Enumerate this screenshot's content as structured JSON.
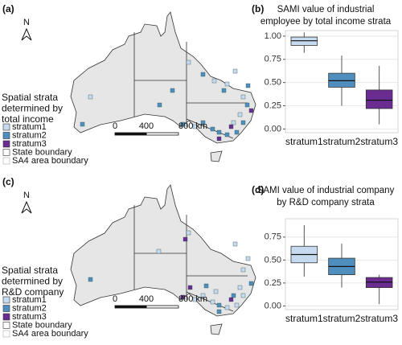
{
  "chart_data": [
    {
      "type": "box",
      "panel": "(b)",
      "title": [
        "SAMI value of industrial",
        "employee by total income strata"
      ],
      "categories": [
        "stratum1",
        "stratum2",
        "stratum3"
      ],
      "boxes": [
        {
          "min": 0.82,
          "q1": 0.9,
          "median": 0.95,
          "q3": 0.99,
          "max": 1.04,
          "color": "#c6dbef"
        },
        {
          "min": 0.25,
          "q1": 0.45,
          "median": 0.52,
          "q3": 0.6,
          "max": 0.79,
          "color": "#4f8fc0"
        },
        {
          "min": 0.05,
          "q1": 0.22,
          "median": 0.31,
          "q3": 0.42,
          "max": 0.68,
          "color": "#6a2c91"
        }
      ],
      "ylim": [
        -0.04,
        1.06
      ],
      "yticks": [
        {
          "value": 0,
          "label": "0.00"
        },
        {
          "value": 0.25,
          "label": "0.25"
        },
        {
          "value": 0.5,
          "label": "0.50"
        },
        {
          "value": 0.75,
          "label": "0.75"
        },
        {
          "value": 1,
          "label": "1.00"
        }
      ],
      "grid": true
    },
    {
      "type": "box",
      "panel": "(d)",
      "title": [
        "SAMI value of industrial company",
        "by R&D company strata"
      ],
      "categories": [
        "stratum1",
        "stratum2",
        "stratum3"
      ],
      "boxes": [
        {
          "min": 0.32,
          "q1": 0.47,
          "median": 0.56,
          "q3": 0.65,
          "max": 0.88,
          "color": "#c6dbef"
        },
        {
          "min": 0.2,
          "q1": 0.34,
          "median": 0.43,
          "q3": 0.52,
          "max": 0.68,
          "color": "#4f8fc0"
        },
        {
          "min": 0.02,
          "q1": 0.2,
          "median": 0.26,
          "q3": 0.31,
          "max": 0.34,
          "color": "#6a2c91"
        }
      ],
      "ylim": [
        -0.04,
        0.95
      ],
      "yticks": [
        {
          "value": 0,
          "label": "0.00"
        },
        {
          "value": 0.25,
          "label": "0.25"
        },
        {
          "value": 0.5,
          "label": "0.50"
        },
        {
          "value": 0.75,
          "label": "0.75"
        }
      ],
      "grid": true
    }
  ],
  "maps": [
    {
      "panel": "(a)",
      "north": "N",
      "legend_title": [
        "Spatial strata",
        "determined by",
        "total income"
      ],
      "legend": [
        {
          "label": "stratum1",
          "color": "#c6dbef"
        },
        {
          "label": "stratum2",
          "color": "#4f8fc0"
        },
        {
          "label": "stratum3",
          "color": "#6a2c91"
        },
        {
          "label": "State boundary",
          "color": "#ffffff"
        },
        {
          "label": "SA4 area boundary",
          "color": "#ffffff"
        }
      ],
      "scale": [
        "0",
        "400",
        "800 km"
      ]
    },
    {
      "panel": "(c)",
      "north": "N",
      "legend_title": [
        "Spatial strata",
        "determined by",
        "R&D company"
      ],
      "legend": [
        {
          "label": "stratum1",
          "color": "#c6dbef"
        },
        {
          "label": "stratum2",
          "color": "#4f8fc0"
        },
        {
          "label": "stratum3",
          "color": "#6a2c91"
        },
        {
          "label": "State boundary",
          "color": "#ffffff"
        },
        {
          "label": "SA4 area boundary",
          "color": "#ffffff"
        }
      ],
      "scale": [
        "0",
        "400",
        "800 km"
      ]
    }
  ]
}
